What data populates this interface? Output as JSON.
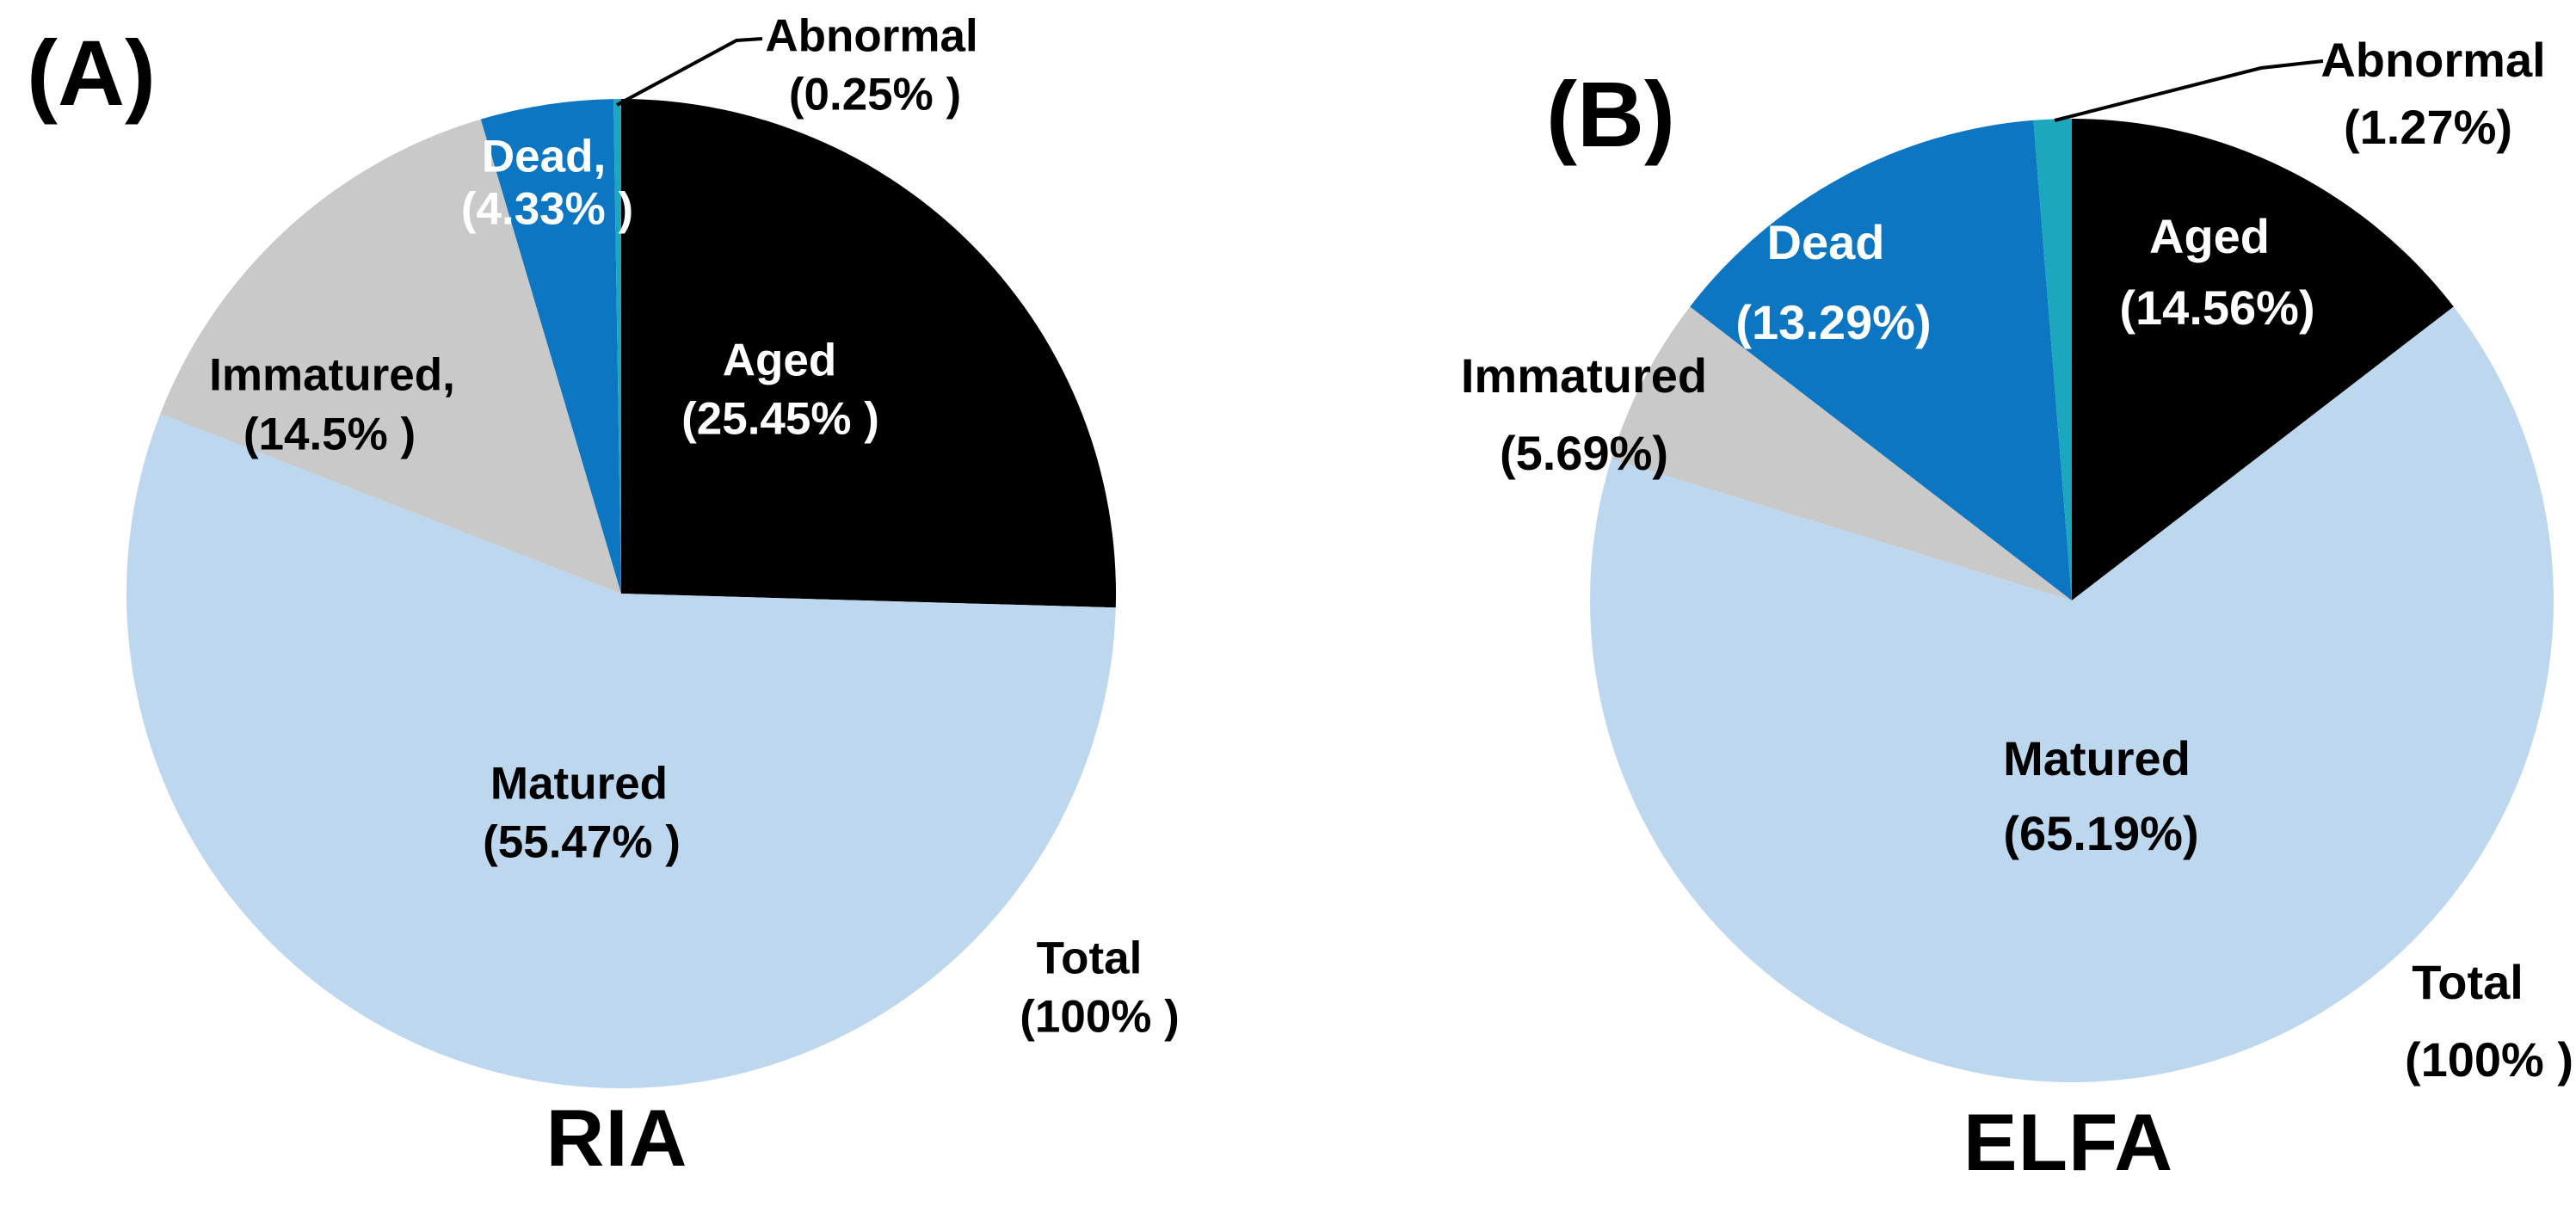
{
  "figure": {
    "background": "#ffffff",
    "panels": [
      {
        "tag": "(A)",
        "title": "RIA",
        "labels": {
          "abnormal1": "Abnormal",
          "abnormal2": "(0.25% )",
          "dead1": "Dead,",
          "dead2": "(4.33% )",
          "immatured1": "Immatured,",
          "immatured2": "(14.5% )",
          "aged1": "Aged",
          "aged2": "(25.45% )",
          "matured1": "Matured",
          "matured2": "(55.47% )",
          "total1": "Total",
          "total2": "(100% )"
        }
      },
      {
        "tag": "(B)",
        "title": "ELFA",
        "labels": {
          "abnormal1": "Abnormal",
          "abnormal2": "(1.27%)",
          "dead1": "Dead",
          "dead2": "(13.29%)",
          "immatured1": "Immatured",
          "immatured2": "(5.69%)",
          "aged1": "Aged",
          "aged2": "(14.56%)",
          "matured1": "Matured",
          "matured2": "(65.19%)",
          "total1": "Total",
          "total2": "(100% )"
        }
      }
    ]
  },
  "colors": {
    "aged": "#000000",
    "matured": "#BDD7EE",
    "immatured": "#C9C9C9",
    "dead": "#0D76C3",
    "abnormal": "#1BA8BE",
    "leader_line": "#000000"
  },
  "chart_data": [
    {
      "type": "pie",
      "panel": "(A)",
      "title": "RIA",
      "units": "%",
      "direction": "clockwise",
      "start_angle": "12 o'clock",
      "legend": "none (labels on slices)",
      "slices": [
        {
          "label": "Aged",
          "value": 25.45,
          "display": "Aged (25.45% )",
          "color": "#000000",
          "label_color": "#ffffff"
        },
        {
          "label": "Matured",
          "value": 55.47,
          "display": "Matured (55.47% )",
          "color": "#BDD7EE",
          "label_color": "#000000"
        },
        {
          "label": "Immatured",
          "value": 14.5,
          "display": "Immatured, (14.5% )",
          "color": "#C9C9C9",
          "label_color": "#000000"
        },
        {
          "label": "Dead",
          "value": 4.33,
          "display": "Dead, (4.33% )",
          "color": "#0D76C3",
          "label_color": "#ffffff"
        },
        {
          "label": "Abnormal",
          "value": 0.25,
          "display": "Abnormal (0.25% )",
          "color": "#1BA8BE",
          "label_color": "#000000",
          "callout": true
        }
      ],
      "annotations": [
        {
          "text": "Total (100% )",
          "position": "outside bottom-right"
        }
      ]
    },
    {
      "type": "pie",
      "panel": "(B)",
      "title": "ELFA",
      "units": "%",
      "direction": "clockwise",
      "start_angle": "12 o'clock",
      "legend": "none (labels on slices)",
      "slices": [
        {
          "label": "Aged",
          "value": 14.56,
          "display": "Aged (14.56%)",
          "color": "#000000",
          "label_color": "#ffffff"
        },
        {
          "label": "Matured",
          "value": 65.19,
          "display": "Matured (65.19%)",
          "color": "#BDD7EE",
          "label_color": "#000000"
        },
        {
          "label": "Immatured",
          "value": 5.69,
          "display": "Immatured (5.69%)",
          "color": "#C9C9C9",
          "label_color": "#000000"
        },
        {
          "label": "Dead",
          "value": 13.29,
          "display": "Dead (13.29%)",
          "color": "#0D76C3",
          "label_color": "#ffffff"
        },
        {
          "label": "Abnormal",
          "value": 1.27,
          "display": "Abnormal (1.27%)",
          "color": "#1BA8BE",
          "label_color": "#000000",
          "callout": true
        }
      ],
      "annotations": [
        {
          "text": "Total (100% )",
          "position": "outside bottom-right"
        }
      ]
    }
  ]
}
